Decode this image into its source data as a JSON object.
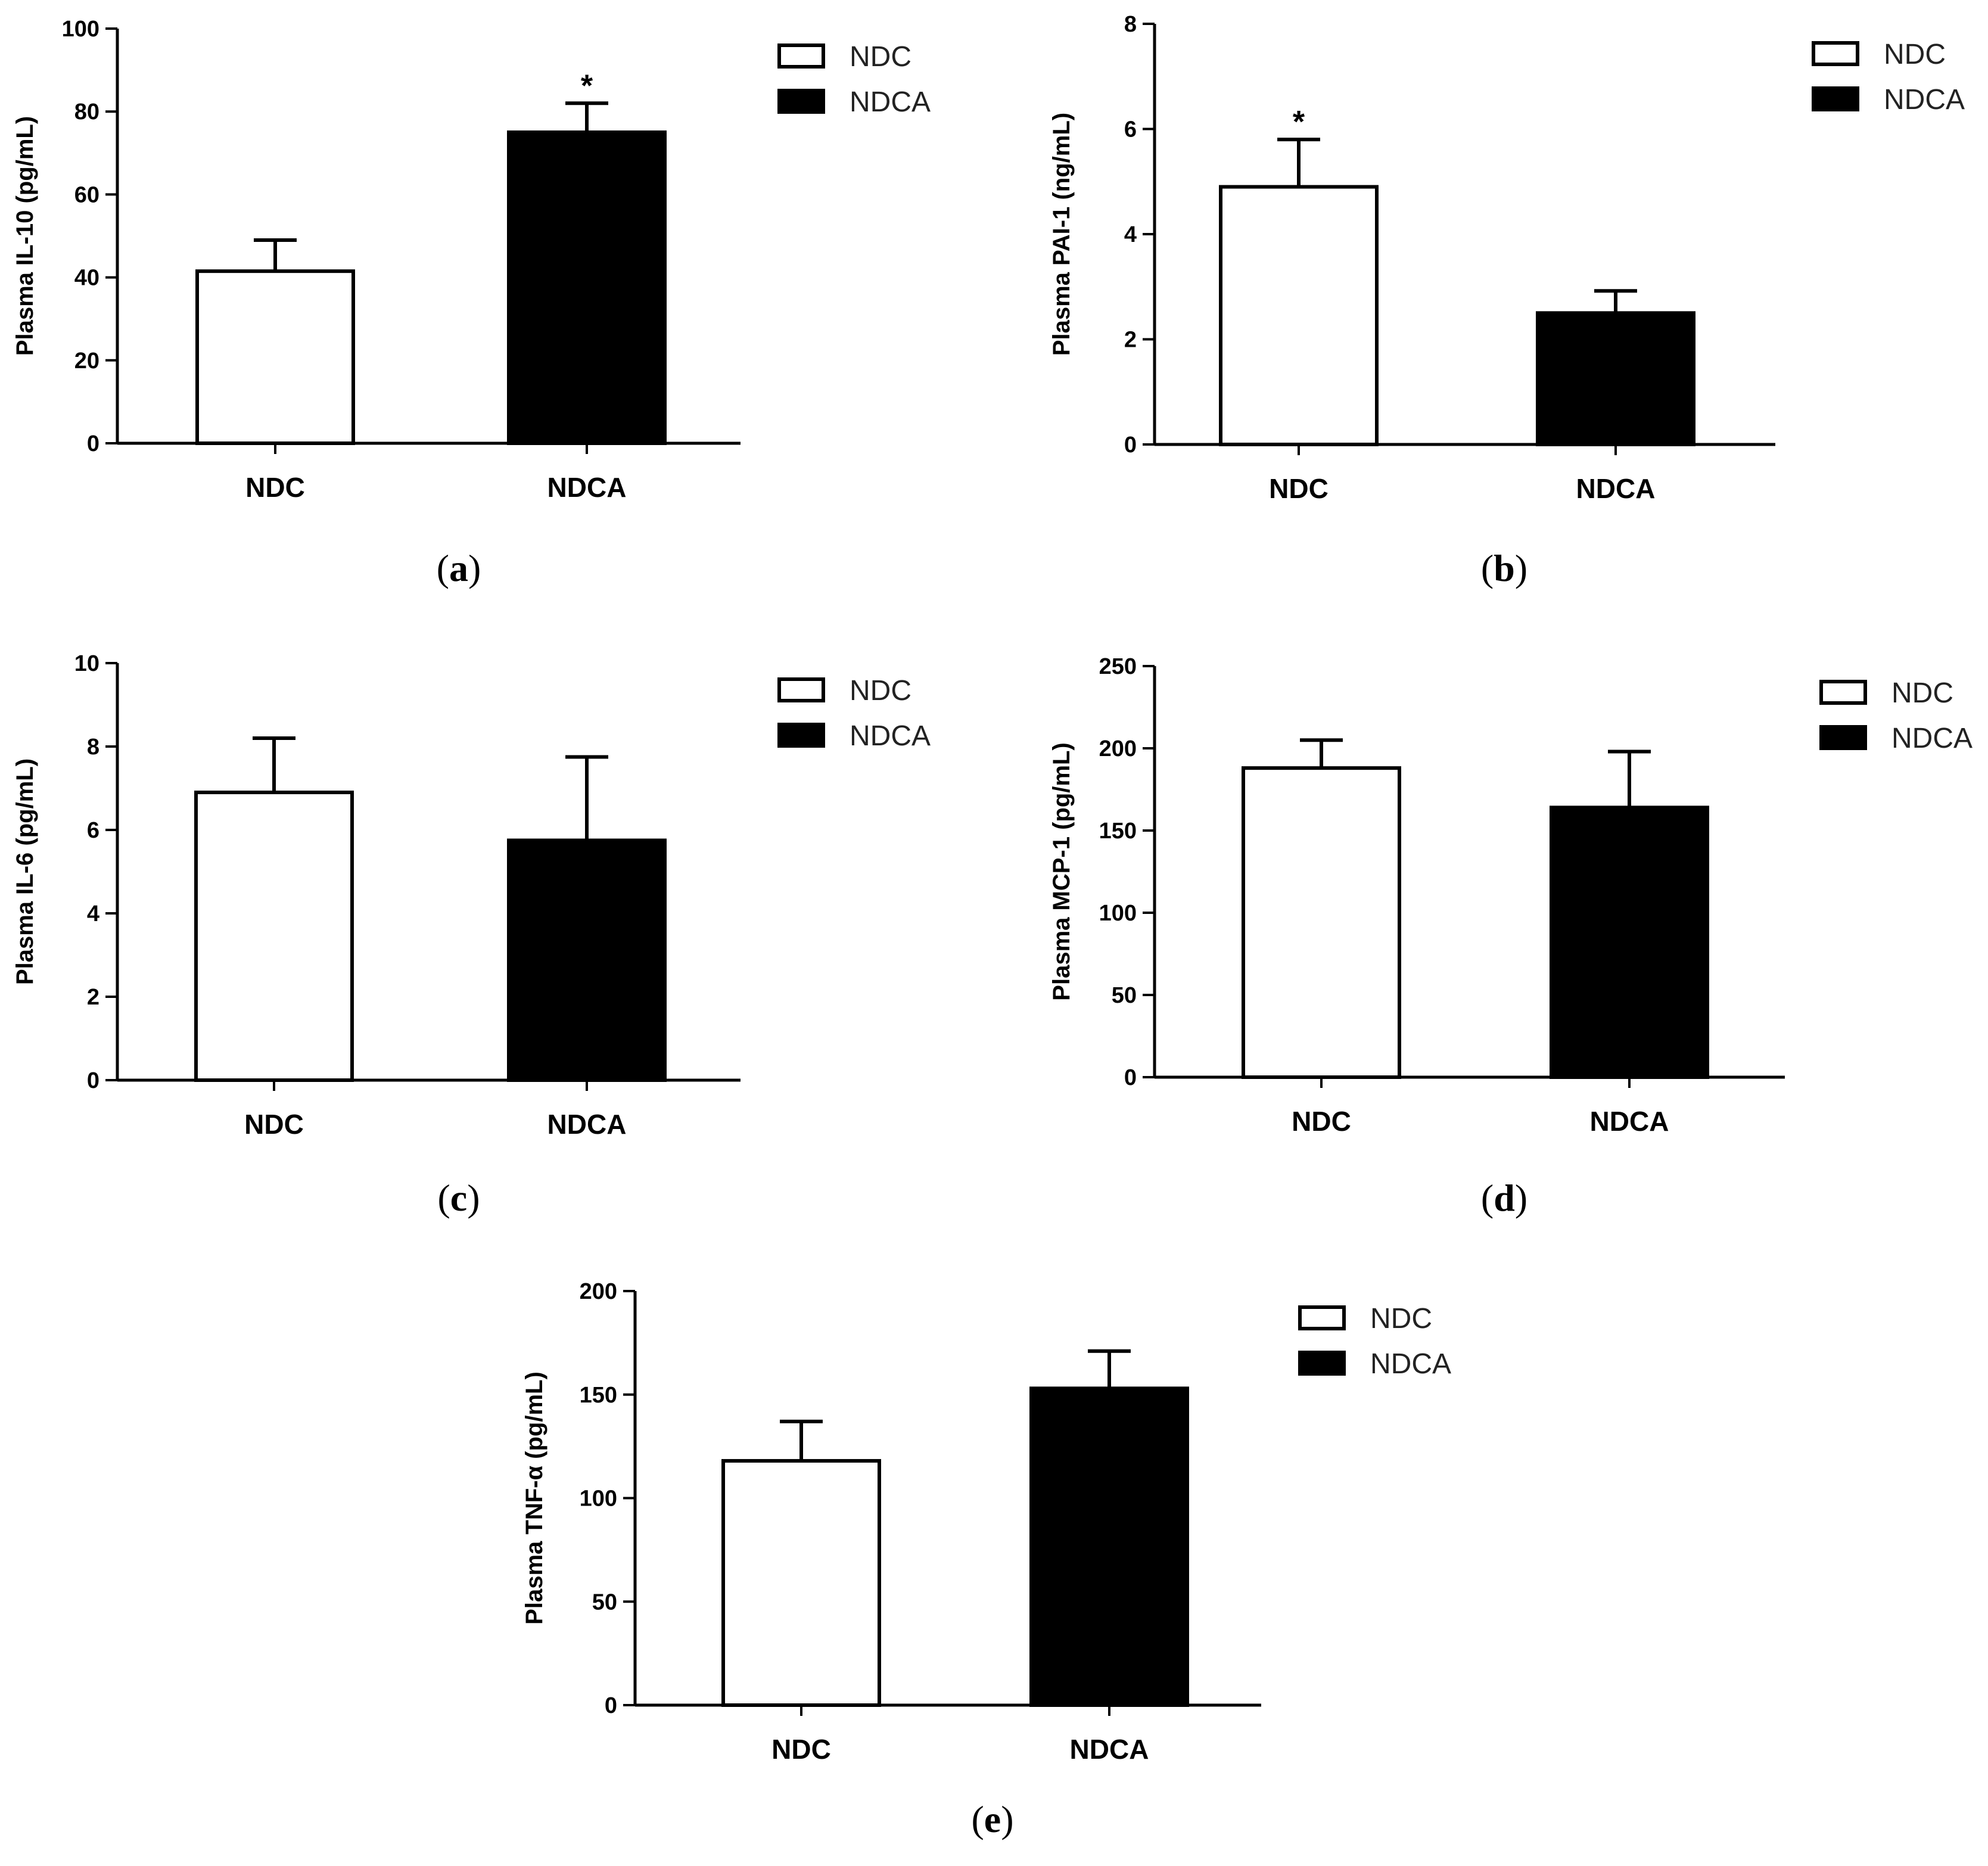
{
  "legend": {
    "ndc": "NDC",
    "ndca": "NDCA"
  },
  "colors": {
    "ndc_fill": "#ffffff",
    "ndca_fill": "#000000",
    "stroke": "#000000"
  },
  "chart_data": [
    {
      "id": "a",
      "type": "bar",
      "panel_label": "a",
      "ylabel": "Plasma IL-10 (pg/mL)",
      "ylim": [
        0,
        100
      ],
      "yticks": [
        0,
        20,
        40,
        60,
        80,
        100
      ],
      "tick_labels": [
        "0",
        "20",
        "40",
        "60",
        "80",
        "100"
      ],
      "categories": [
        "NDC",
        "NDCA"
      ],
      "values": [
        41.5,
        75.0
      ],
      "errors": [
        7.5,
        7.0
      ],
      "significance": [
        "",
        "*"
      ]
    },
    {
      "id": "b",
      "type": "bar",
      "panel_label": "b",
      "ylabel": "Plasma PAI-1 (ng/mL)",
      "ylim": [
        0,
        8
      ],
      "yticks": [
        0,
        2,
        4,
        6,
        8
      ],
      "tick_labels": [
        "0",
        "2",
        "4",
        "6",
        "8"
      ],
      "categories": [
        "NDC",
        "NDCA"
      ],
      "values": [
        4.9,
        2.5
      ],
      "errors": [
        0.9,
        0.42
      ],
      "significance": [
        "*",
        ""
      ]
    },
    {
      "id": "c",
      "type": "bar",
      "panel_label": "c",
      "ylabel": "Plasma IL-6 (pg/mL)",
      "ylim": [
        0,
        10
      ],
      "yticks": [
        0,
        2,
        4,
        6,
        8,
        10
      ],
      "tick_labels": [
        "0",
        "2",
        "4",
        "6",
        "8",
        "10"
      ],
      "categories": [
        "NDC",
        "NDCA"
      ],
      "values": [
        6.9,
        5.75
      ],
      "errors": [
        1.3,
        2.0
      ],
      "significance": [
        "",
        ""
      ]
    },
    {
      "id": "d",
      "type": "bar",
      "panel_label": "d",
      "ylabel": "Plasma MCP-1 (pg/mL)",
      "ylim": [
        0,
        250
      ],
      "yticks": [
        0,
        50,
        100,
        150,
        200,
        250
      ],
      "tick_labels": [
        "0",
        "50",
        "100",
        "150",
        "200",
        "250"
      ],
      "categories": [
        "NDC",
        "NDCA"
      ],
      "values": [
        188,
        164
      ],
      "errors": [
        17,
        34
      ],
      "significance": [
        "",
        ""
      ]
    },
    {
      "id": "e",
      "type": "bar",
      "panel_label": "e",
      "ylabel": "Plasma TNF-α (pg/mL)",
      "ylim": [
        0,
        200
      ],
      "yticks": [
        0,
        50,
        100,
        150,
        200
      ],
      "tick_labels": [
        "0",
        "50",
        "100",
        "150",
        "200"
      ],
      "categories": [
        "NDC",
        "NDCA"
      ],
      "values": [
        118,
        153
      ],
      "errors": [
        19,
        18
      ],
      "significance": [
        "",
        ""
      ]
    }
  ]
}
